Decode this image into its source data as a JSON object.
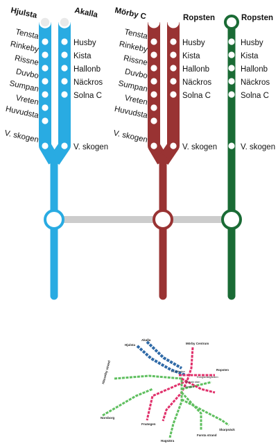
{
  "colors": {
    "blue": "#29abe2",
    "red": "#993333",
    "green": "#1a6b35",
    "connector": "#cccccc",
    "pink": "#e0306b",
    "light_green": "#5fbf5f",
    "dark_blue": "#2f6aa7"
  },
  "blue_line": {
    "terminus_left": "Hjulsta",
    "terminus_right": "Akalla",
    "left_stations": [
      "Tensta",
      "Rinkeby",
      "Rissne",
      "Duvbo",
      "Sumpan",
      "Vreten",
      "Huvudsta",
      "V. skogen"
    ],
    "right_stations": [
      "Husby",
      "Kista",
      "Hallonb",
      "Näckros",
      "Solna C",
      "V. skogen"
    ]
  },
  "red_line": {
    "terminus_left": "Mörby C",
    "terminus_right": "Ropsten",
    "left_stations": [
      "Tensta",
      "Rinkeby",
      "Rissne",
      "Duvbo",
      "Sumpan",
      "Vreten",
      "Huvudsta",
      "V. skogen"
    ],
    "right_stations": [
      "Husby",
      "Kista",
      "Hallonb",
      "Näckros",
      "Solna C",
      "V. skogen"
    ]
  },
  "green_line": {
    "terminus": "Ropsten",
    "stations": [
      "Husby",
      "Kista",
      "Hallonb",
      "Näckros",
      "Solna C",
      "V. skogen"
    ]
  },
  "mini_map": {
    "labels": {
      "akalla": "Akalla",
      "hjulsta": "Hjulsta",
      "morby": "Mörby Centrum",
      "ropsten": "Ropsten",
      "hasselby": "Hässelby strand",
      "farsta": "Farsta strand",
      "skarpnack": "Skarpnäck",
      "hagsatra": "Hagsätra",
      "fruangen": "Fruängen",
      "norsborg": "Norsborg",
      "t_centralen": "T-Centralen",
      "slussen": "Slussen",
      "gamla_stan": "Gamla stan",
      "kungstradgarden": "Kungsträdgården"
    }
  }
}
